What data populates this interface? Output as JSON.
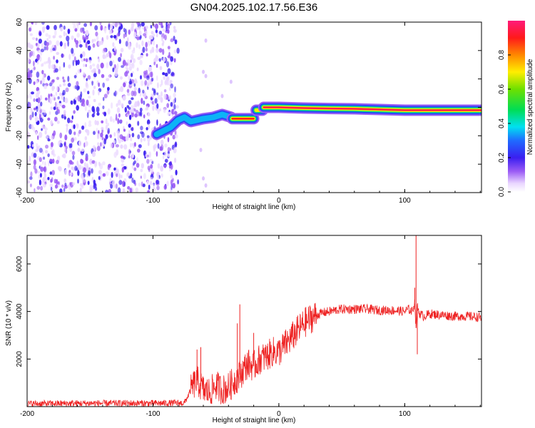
{
  "title": "GN04.2025.102.17.56.E36",
  "chart_data": [
    {
      "type": "heatmap",
      "xlabel": "Height of straight line (km)",
      "ylabel": "Frequency (Hz)",
      "xlim": [
        -200,
        161
      ],
      "ylim": [
        -60,
        60
      ],
      "xticks": [
        -200,
        -100,
        0,
        100
      ],
      "yticks": [
        -60,
        -40,
        -20,
        0,
        20,
        40,
        60
      ],
      "colorbar": {
        "label": "Normalized spectral amplitude",
        "range": [
          0,
          1
        ],
        "ticks": [
          0.0,
          0.2,
          0.4,
          0.6,
          0.8
        ]
      },
      "features": [
        {
          "name": "noise_field",
          "x_range": [
            -200,
            -80
          ],
          "y_range": [
            -60,
            60
          ],
          "amplitude": 0.15
        },
        {
          "name": "track_segment",
          "x": [
            -97,
            -86,
            -80,
            -75,
            -70,
            -60,
            -52,
            -45,
            -38
          ],
          "y": [
            -19,
            -14,
            -9,
            -7,
            -10,
            -8,
            -7,
            -5,
            -7
          ],
          "amplitude": 0.35
        },
        {
          "name": "track_segment",
          "x": [
            -37,
            -20
          ],
          "y": [
            -8,
            -8
          ],
          "amplitude": 0.9
        },
        {
          "name": "track_segment",
          "x": [
            -18,
            -13
          ],
          "y": [
            -2,
            -2
          ],
          "amplitude": 0.7
        },
        {
          "name": "track_segment",
          "x": [
            -12,
            0,
            20,
            40,
            60,
            80,
            100,
            120,
            140,
            161
          ],
          "y": [
            0,
            0,
            -0.5,
            -0.8,
            -1,
            -1.5,
            -2,
            -2,
            -2,
            -2
          ],
          "amplitude": 0.95
        }
      ]
    },
    {
      "type": "line",
      "xlabel": "Height of straight line (km)",
      "ylabel": "SNR (10 * v/v)",
      "xlim": [
        -200,
        161
      ],
      "ylim": [
        0,
        7200
      ],
      "xticks": [
        -200,
        -100,
        0,
        100
      ],
      "yticks": [
        2000,
        4000,
        6000
      ],
      "series": [
        {
          "color": "#ee2222",
          "x": [
            -200,
            -150,
            -100,
            -75,
            -68,
            -65,
            -60,
            -55,
            -50,
            -45,
            -40,
            -35,
            -30,
            -25,
            -20,
            -15,
            -10,
            -5,
            0,
            5,
            10,
            15,
            20,
            25,
            30,
            35,
            40,
            50,
            60,
            70,
            80,
            90,
            100,
            103,
            106,
            108,
            109,
            110,
            112,
            115,
            120,
            130,
            140,
            150,
            161
          ],
          "y": [
            120,
            140,
            140,
            150,
            900,
            1100,
            700,
            600,
            900,
            700,
            800,
            1100,
            1400,
            1800,
            1700,
            2000,
            2100,
            2300,
            2300,
            2600,
            2900,
            3200,
            3500,
            3700,
            3850,
            3950,
            4000,
            4100,
            4100,
            4100,
            4050,
            4050,
            4000,
            4100,
            4000,
            4400,
            3300,
            4200,
            3900,
            3800,
            3900,
            3850,
            3800,
            3800,
            3750
          ]
        }
      ],
      "spikes": [
        {
          "x": -65,
          "y": 2400
        },
        {
          "x": -62,
          "y": 2500
        },
        {
          "x": -31,
          "y": 4300
        },
        {
          "x": -33,
          "y": 3500
        },
        {
          "x": -20,
          "y": 3100
        },
        {
          "x": 108,
          "y": 5000
        },
        {
          "x": 109,
          "y": 7200
        },
        {
          "x": 110,
          "y": 2200
        }
      ]
    }
  ]
}
